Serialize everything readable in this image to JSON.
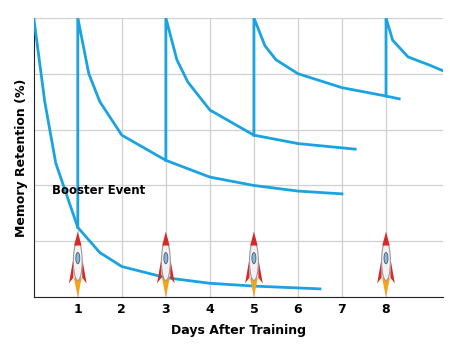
{
  "chart_data": {
    "type": "line",
    "x_label": "Days After Training",
    "y_label": "Memory Retention (%)",
    "annotations": [
      "Booster Event"
    ],
    "color": "#1aa3e0",
    "grid": true,
    "tick_labels": "x",
    "xlim": [
      0,
      9.3
    ],
    "xticks": [
      1,
      2,
      3,
      4,
      5,
      6,
      7,
      8
    ],
    "ylim": [
      0,
      100
    ],
    "yticks": [
      0,
      20,
      40,
      60,
      80,
      100
    ],
    "series": [
      {
        "x": [
          0,
          0.25,
          0.5,
          1,
          1.5,
          2,
          3,
          4,
          5,
          6.5
        ],
        "values": [
          100,
          70,
          48,
          25,
          16,
          11,
          7,
          5,
          4,
          3
        ]
      },
      {
        "x": [
          1,
          1,
          1.25,
          1.5,
          2,
          3,
          4,
          5,
          6,
          7
        ],
        "values": [
          25,
          100,
          80,
          70,
          58,
          49,
          43,
          40,
          38,
          37
        ]
      },
      {
        "x": [
          3,
          3,
          3.25,
          3.5,
          4,
          5,
          6,
          7.3
        ],
        "values": [
          49,
          100,
          85,
          77,
          67,
          58,
          55,
          53
        ]
      },
      {
        "x": [
          5,
          5,
          5.25,
          5.5,
          6,
          7,
          8,
          8.3
        ],
        "values": [
          58,
          100,
          90,
          85,
          80,
          75,
          72,
          71
        ]
      },
      {
        "x": [
          8,
          8,
          8.15,
          8.5,
          9,
          9.3
        ],
        "values": [
          72,
          100,
          92,
          86,
          83,
          81
        ]
      }
    ]
  }
}
